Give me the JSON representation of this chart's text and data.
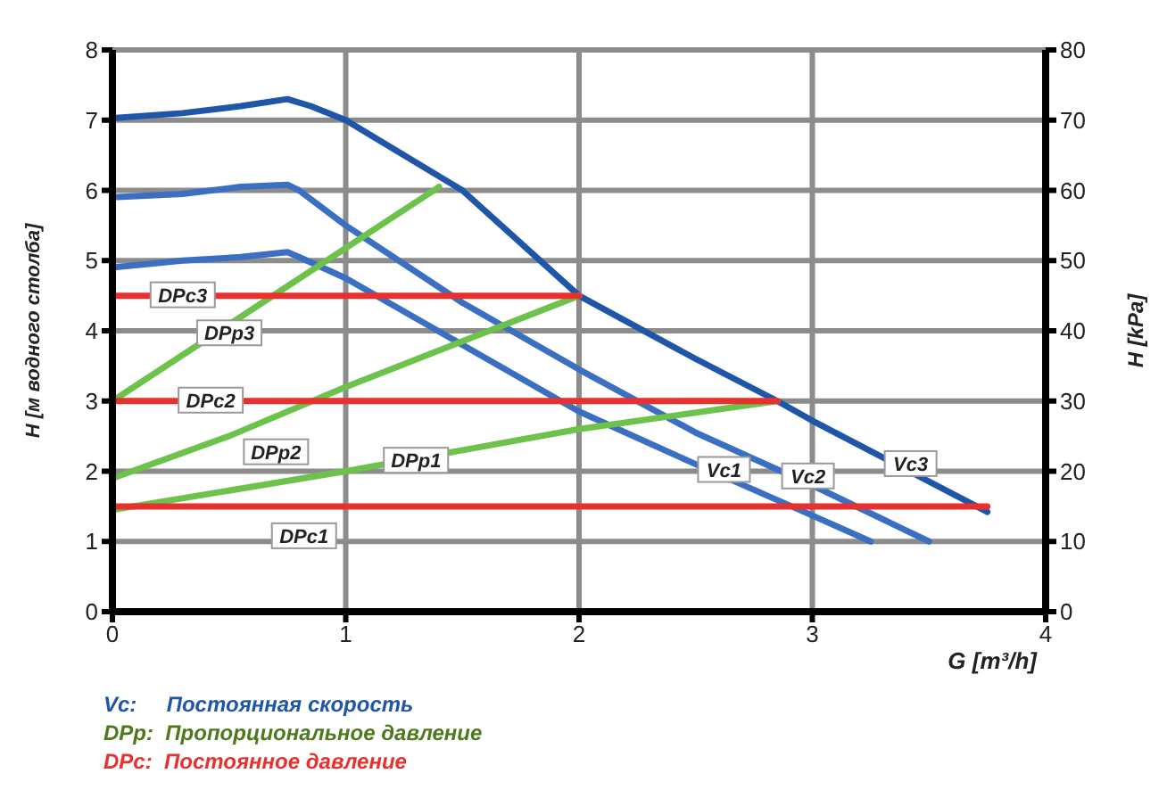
{
  "chart_data": {
    "type": "line",
    "xlabel": "G [m³/h]",
    "ylabel": "H [м водного столба]",
    "y2label": "H [kPa]",
    "xlim": [
      0,
      4
    ],
    "xticks": [
      0,
      1,
      2,
      3,
      4
    ],
    "ylim": [
      0,
      8
    ],
    "yticks": [
      0,
      1,
      2,
      3,
      4,
      5,
      6,
      7,
      8
    ],
    "y2lim": [
      0,
      80
    ],
    "y2ticks": [
      0,
      10,
      20,
      30,
      40,
      50,
      60,
      70,
      80
    ],
    "grid": true,
    "marker": "none",
    "line_style": "solid",
    "series": [
      {
        "name": "Vc1",
        "color": "#3b6fc1",
        "x": [
          0,
          0.3,
          0.55,
          0.75,
          0.8,
          1,
          1.5,
          2,
          2.5,
          3,
          3.25
        ],
        "values": [
          4.9,
          5.0,
          5.05,
          5.12,
          5.05,
          4.75,
          3.8,
          2.85,
          2.1,
          1.37,
          1.0
        ]
      },
      {
        "name": "Vc2",
        "color": "#3b6fc1",
        "x": [
          0,
          0.3,
          0.55,
          0.75,
          0.8,
          1,
          1.5,
          2,
          2.5,
          3,
          3.5
        ],
        "values": [
          5.9,
          5.95,
          6.05,
          6.08,
          6.0,
          5.5,
          4.4,
          3.45,
          2.55,
          1.8,
          1.0
        ]
      },
      {
        "name": "Vc3",
        "color": "#1f56a8",
        "x": [
          0,
          0.3,
          0.55,
          0.75,
          0.85,
          1,
          1.2,
          1.5,
          2,
          2.5,
          2.85,
          3,
          3.75
        ],
        "values": [
          7.03,
          7.1,
          7.2,
          7.3,
          7.2,
          7.0,
          6.6,
          6.0,
          4.5,
          3.6,
          3.0,
          2.72,
          1.42
        ]
      },
      {
        "name": "DPp1",
        "color": "#6cc24a",
        "x": [
          0,
          1,
          2,
          2.85
        ],
        "values": [
          1.45,
          2.0,
          2.6,
          3.0
        ]
      },
      {
        "name": "DPp2",
        "color": "#6cc24a",
        "x": [
          0,
          0.5,
          1,
          1.5,
          2
        ],
        "values": [
          1.9,
          2.5,
          3.2,
          3.85,
          4.5
        ]
      },
      {
        "name": "DPp3",
        "color": "#6cc24a",
        "x": [
          0,
          1.4
        ],
        "values": [
          3.0,
          6.05
        ]
      },
      {
        "name": "DPc1",
        "color": "#e8312f",
        "x": [
          0,
          3.75
        ],
        "values": [
          1.5,
          1.5
        ]
      },
      {
        "name": "DPc2",
        "color": "#e8312f",
        "x": [
          0,
          2.85
        ],
        "values": [
          3.0,
          3.0
        ]
      },
      {
        "name": "DPc3",
        "color": "#e8312f",
        "x": [
          0,
          2
        ],
        "values": [
          4.5,
          4.5
        ]
      }
    ],
    "annotations": [
      "Vc:     Постоянная скорость",
      "DPp:  Пропорциональное давление",
      "DPc:  Постоянное давление"
    ]
  }
}
